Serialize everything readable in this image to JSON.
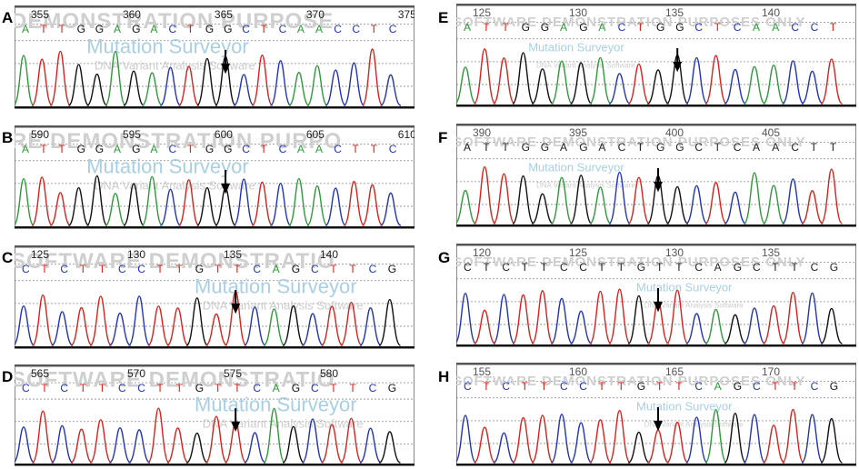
{
  "panels": [
    {
      "letter": "A",
      "positions": [
        355,
        360,
        365,
        370,
        375
      ],
      "bases": "ATTGGAGACTGGCTCAACCTC",
      "colored_bases": true,
      "watermark_main": "DEMONSTRATION PURPOSE",
      "watermark_brand": "Mutation Surveyor",
      "watermark_sub": "DNA Variant Analysis Software",
      "arrow_base_index": 11
    },
    {
      "letter": "B",
      "positions": [
        590,
        595,
        600,
        605,
        610
      ],
      "bases": "ATTGGAGACTGGCTCAACTTC",
      "colored_bases": true,
      "watermark_main": "RE DEMONSTRATION PURPO",
      "watermark_brand": "Mutation Surveyor",
      "watermark_sub": "DNA Variant Analysis Software",
      "arrow_base_index": 11
    },
    {
      "letter": "C",
      "positions": [
        125,
        130,
        135,
        140
      ],
      "bases": "CTCTTCCTTGTTCAGCTTCG",
      "colored_bases": true,
      "watermark_main": "SOFTWARE DEMONSTRATIO",
      "watermark_brand": "Mutation Surveyor",
      "watermark_sub": "DNA Variant Analysis Software",
      "arrow_base_index": 11
    },
    {
      "letter": "D",
      "positions": [
        565,
        570,
        575,
        580
      ],
      "bases": "CTCTTCCTTGTTCAGCTTCG",
      "colored_bases": true,
      "watermark_main": "SOFTWARE DEMONSTRATIO",
      "watermark_brand": "Mutation Surveyor",
      "watermark_sub": "DNA Variant Analysis Software",
      "arrow_base_index": 11
    },
    {
      "letter": "E",
      "positions": [
        125,
        130,
        135,
        140
      ],
      "bases": "ATTGGAGACTGGCTCAACCT",
      "colored_bases": true,
      "watermark_main": "SOFTWARE DEMONSTRATION PURPOSES ONLY",
      "watermark_brand": "Mutation Surveyor",
      "watermark_sub": "DNA Variant Analysis Software",
      "arrow_base_index": 11
    },
    {
      "letter": "F",
      "positions": [
        390,
        395,
        400,
        405
      ],
      "bases": "ATTGGAGACTGGCTCAACTT",
      "colored_bases": false,
      "watermark_main": "SOFTWARE DEMONSTRATION PURPOSES ONLY",
      "watermark_brand": "Mutation Surveyor",
      "watermark_sub": "DNA Variant Analysis Software",
      "arrow_base_index": 10
    },
    {
      "letter": "G",
      "positions": [
        120,
        125,
        130,
        135,
        140
      ],
      "bases": "CTCTTCCTTGTTCAGCTTCG",
      "colored_bases": false,
      "watermark_main": "SOFTWARE DEMONSTRATION PURPOSES ONLY",
      "watermark_brand": "Mutation Surveyor",
      "watermark_sub": "DNA Variant Analysis Software",
      "arrow_base_index": 10
    },
    {
      "letter": "H",
      "positions": [
        155,
        160,
        165,
        170
      ],
      "bases": "CTCTTCCTTGTTCAGCTTCG",
      "colored_bases": true,
      "watermark_main": "SOFTWARE DEMONSTRATION PURPOSES ONLY",
      "watermark_brand": "Mutation Surveyor",
      "watermark_sub": "DNA Variant Analysis Software",
      "arrow_base_index": 10
    }
  ],
  "base_colors": {
    "A": "#2e9a3a",
    "C": "#2335b5",
    "G": "#111111",
    "T": "#d4241d"
  }
}
